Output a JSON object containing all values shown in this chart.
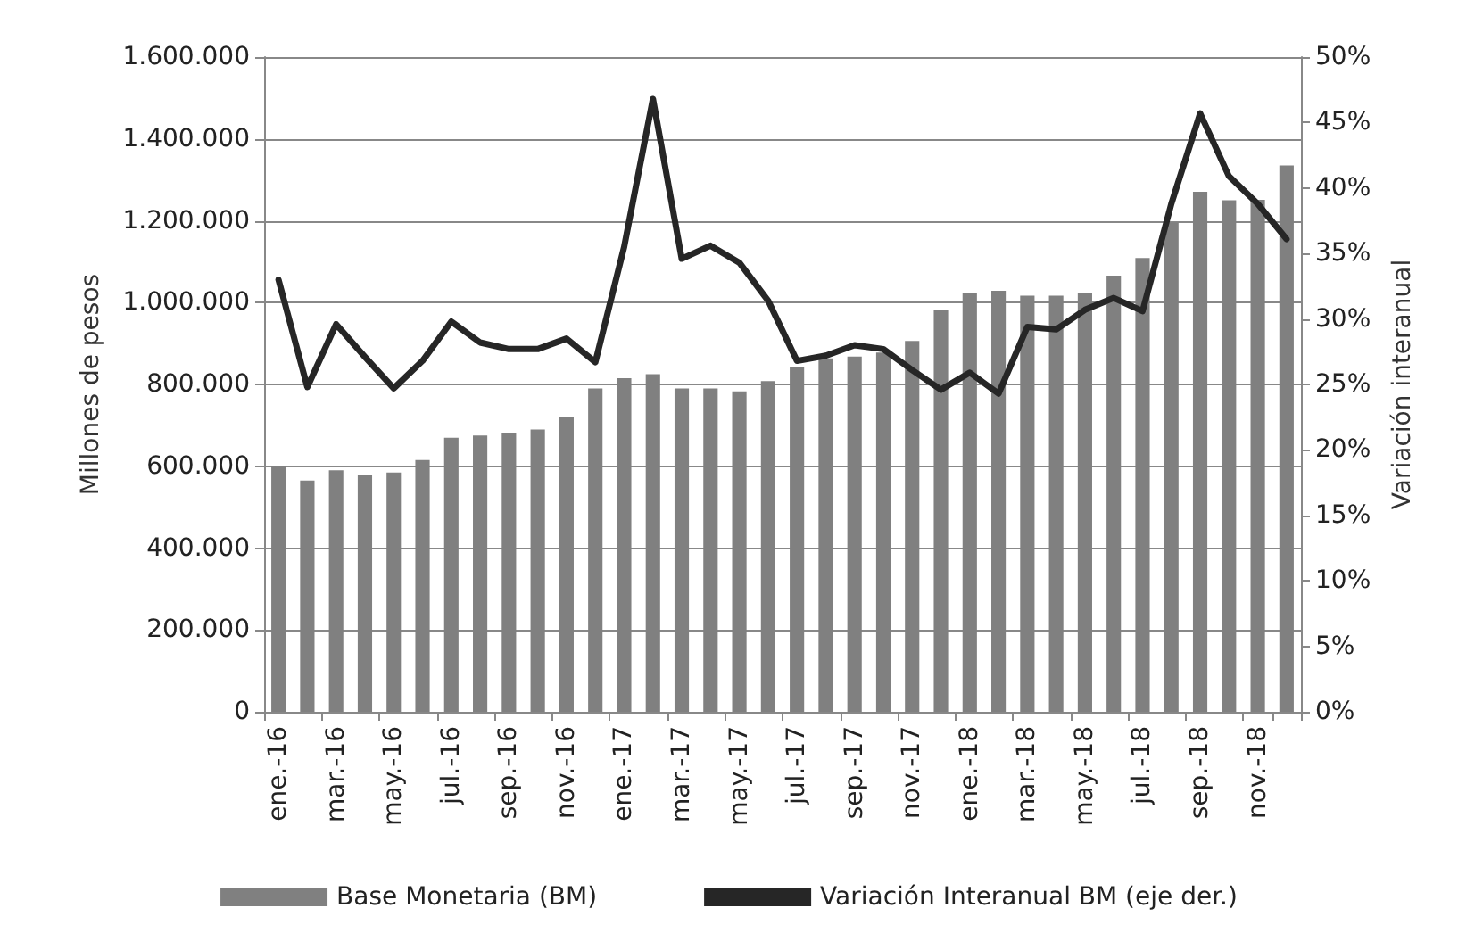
{
  "chart_data": {
    "type": "bar",
    "ylabel": "Millones de pesos",
    "y2label": "Variación interanual",
    "categories": [
      "ene.-16",
      null,
      "mar.-16",
      null,
      "may.-16",
      null,
      "jul.-16",
      null,
      "sep.-16",
      null,
      "nov.-16",
      null,
      "ene.-17",
      null,
      "mar.-17",
      null,
      "may.-17",
      null,
      "jul.-17",
      null,
      "sep.-17",
      null,
      "nov.-17",
      null,
      "ene.-18",
      null,
      "mar.-18",
      null,
      "may.-18",
      null,
      "jul.-18",
      null,
      "sep.-18",
      null,
      "nov.-18",
      null
    ],
    "series": [
      {
        "name": "Base Monetaria (BM)",
        "color": "#808080",
        "values": [
          600000,
          565000,
          590000,
          580000,
          585000,
          615000,
          670000,
          675000,
          680000,
          690000,
          720000,
          790000,
          815000,
          825000,
          790000,
          790000,
          783000,
          808000,
          843000,
          864000,
          868000,
          878000,
          906000,
          981000,
          1024000,
          1029000,
          1017000,
          1017000,
          1024000,
          1066000,
          1109000,
          1196000,
          1271000,
          1250000,
          1251000,
          1335000
        ]
      },
      {
        "name": "Variación Interanual BM (eje der.)",
        "type": "line",
        "axis": "y2",
        "color": "#262626",
        "values": [
          33.0,
          24.8,
          29.6,
          27.1,
          24.7,
          26.8,
          29.8,
          28.2,
          27.7,
          27.7,
          28.5,
          26.7,
          35.5,
          46.8,
          34.6,
          35.6,
          34.3,
          31.4,
          26.8,
          27.2,
          28.0,
          27.7,
          26.1,
          24.6,
          25.9,
          24.3,
          29.4,
          29.2,
          30.7,
          31.6,
          30.6,
          38.8,
          45.7,
          40.9,
          38.8,
          36.1
        ]
      }
    ],
    "ylim": [
      0,
      1600000
    ],
    "yticks": [
      {
        "value": 0,
        "label": "0"
      },
      {
        "value": 200000,
        "label": "200.000"
      },
      {
        "value": 400000,
        "label": "400.000"
      },
      {
        "value": 600000,
        "label": "600.000"
      },
      {
        "value": 800000,
        "label": "800.000"
      },
      {
        "value": 1000000,
        "label": "1.000.000"
      },
      {
        "value": 1200000,
        "label": "1.200.000"
      },
      {
        "value": 1400000,
        "label": "1.400.000"
      },
      {
        "value": 1600000,
        "label": "1.600.000"
      }
    ],
    "y2lim": [
      0,
      50
    ],
    "y2ticks": [
      {
        "value": 0,
        "label": "0%"
      },
      {
        "value": 5,
        "label": "5%"
      },
      {
        "value": 10,
        "label": "10%"
      },
      {
        "value": 15,
        "label": "15%"
      },
      {
        "value": 20,
        "label": "20%"
      },
      {
        "value": 25,
        "label": "25%"
      },
      {
        "value": 30,
        "label": "30%"
      },
      {
        "value": 35,
        "label": "35%"
      },
      {
        "value": 40,
        "label": "40%"
      },
      {
        "value": 45,
        "label": "45%"
      },
      {
        "value": 50,
        "label": "50%"
      }
    ],
    "grid": "y",
    "legend": "bottom",
    "marker": "none",
    "line_style": "solid"
  }
}
